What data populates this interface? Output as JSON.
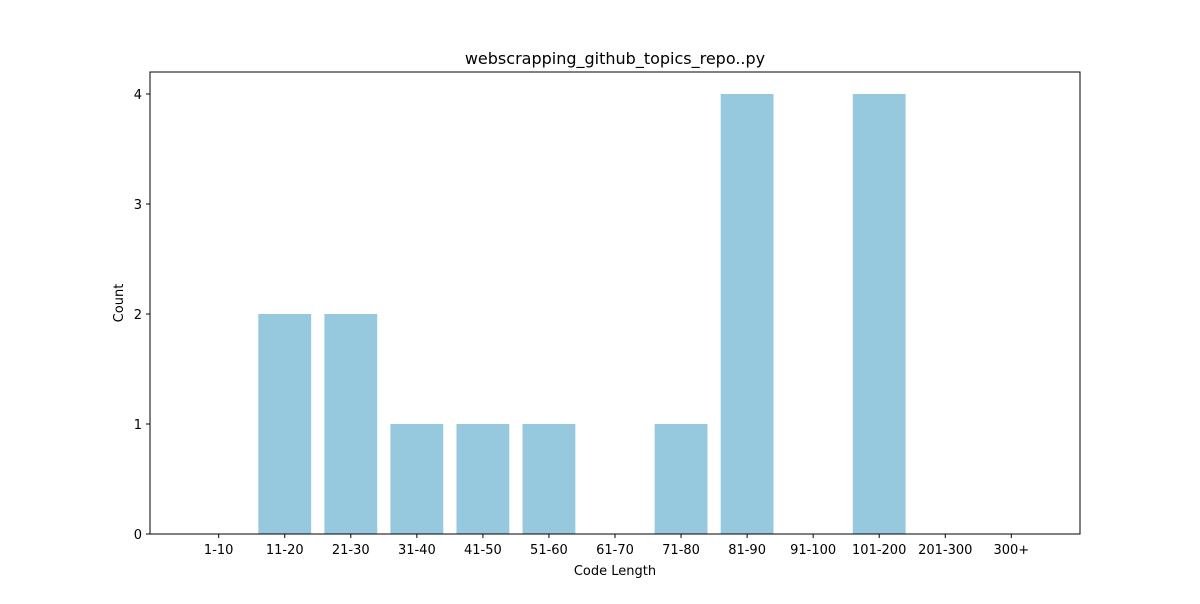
{
  "chart_data": {
    "type": "bar",
    "title": "webscrapping_github_topics_repo..py",
    "xlabel": "Code Length",
    "ylabel": "Count",
    "categories": [
      "1-10",
      "11-20",
      "21-30",
      "31-40",
      "41-50",
      "51-60",
      "61-70",
      "71-80",
      "81-90",
      "91-100",
      "101-200",
      "201-300",
      "300+"
    ],
    "values": [
      0,
      2,
      2,
      1,
      1,
      1,
      0,
      1,
      4,
      0,
      4,
      0,
      0
    ],
    "ylim": [
      0,
      4.2
    ],
    "yticks": [
      0,
      1,
      2,
      3,
      4
    ],
    "bar_color": "#96c9dd",
    "grid": false,
    "legend": "none"
  }
}
